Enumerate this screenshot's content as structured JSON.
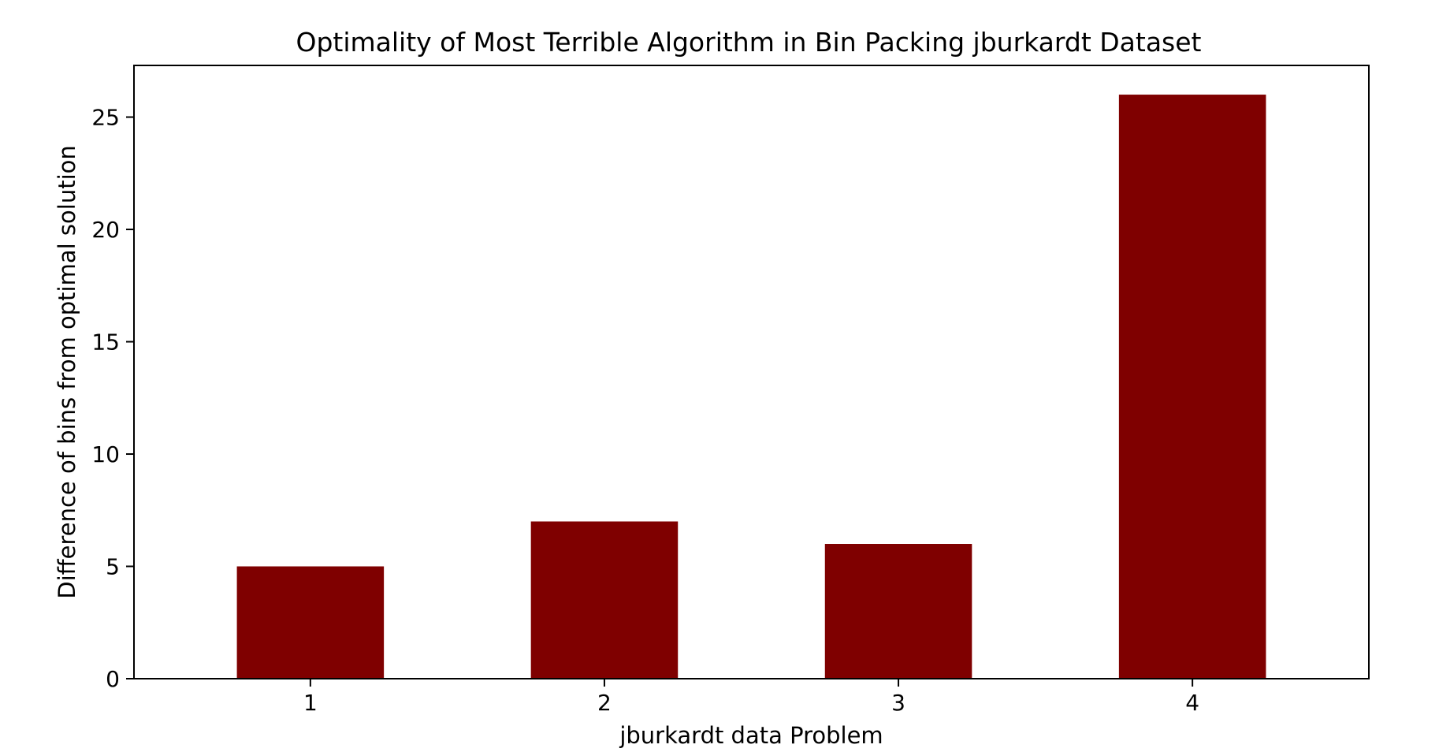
{
  "chart_data": {
    "type": "bar",
    "title": "Optimality of Most Terrible Algorithm in Bin Packing jburkardt Dataset",
    "xlabel": "jburkardt data Problem",
    "ylabel": "Difference of bins from optimal solution",
    "categories": [
      "1",
      "2",
      "3",
      "4"
    ],
    "values": [
      5,
      7,
      6,
      26
    ],
    "ylim": [
      0,
      27.3
    ],
    "yticks": [
      0,
      5,
      10,
      15,
      20,
      25
    ],
    "bar_color": "#7f0000",
    "grid": false,
    "legend": "none"
  }
}
